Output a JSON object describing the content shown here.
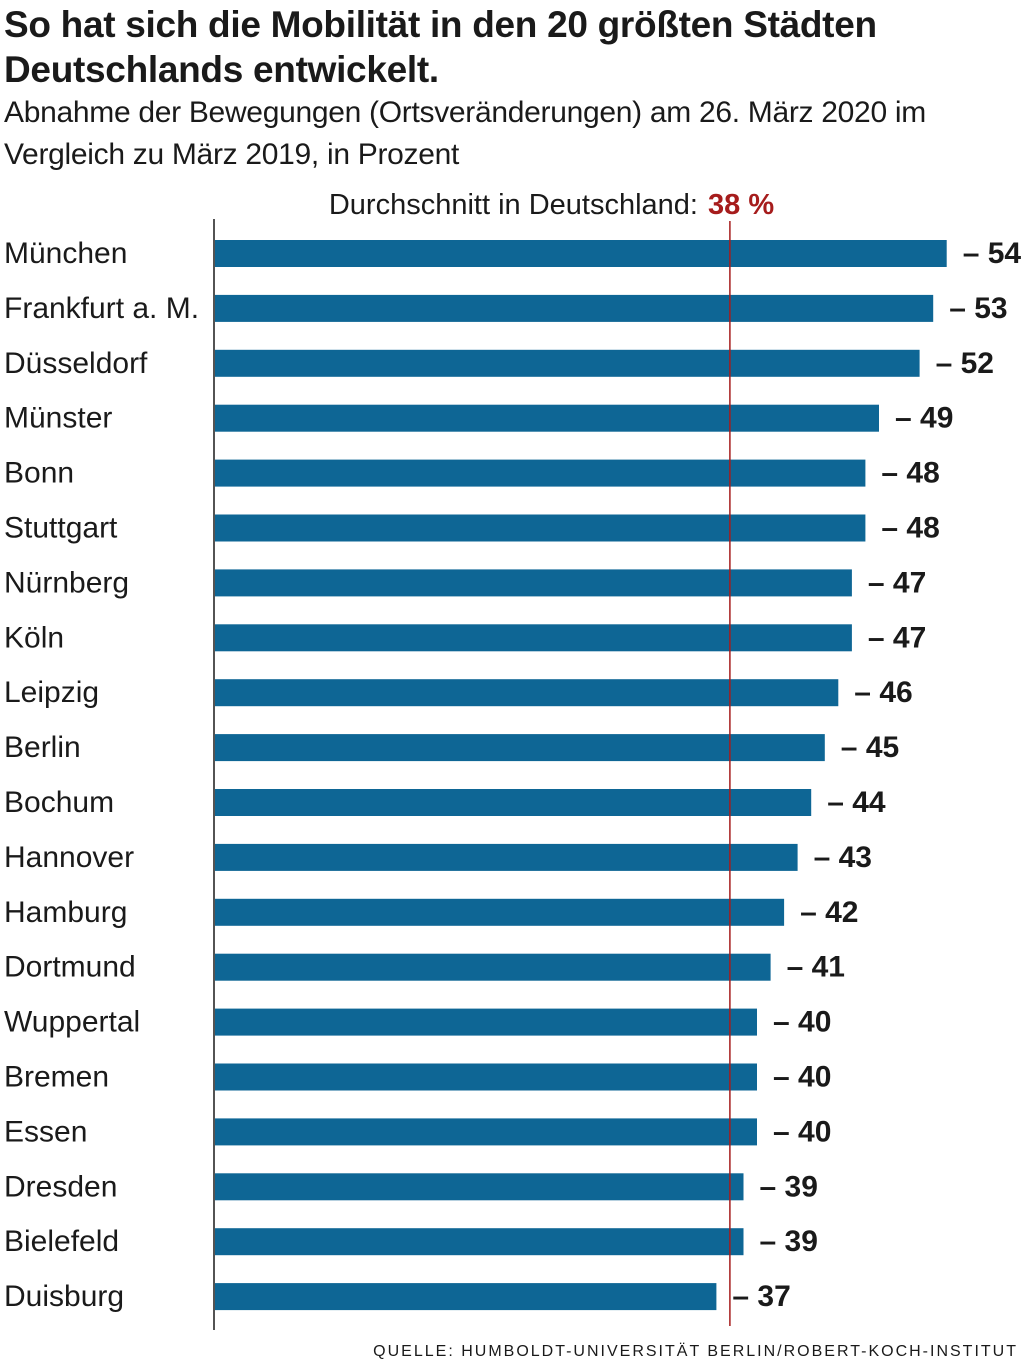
{
  "title": "So hat sich die Mobilität in den 20 größten Städten Deutschlands entwickelt.",
  "subtitle": "Abnahme der Bewegungen (Ortsveränderungen) am 26. März 2020 im Vergleich zu März 2019, in Prozent",
  "source": "QUELLE: HUMBOLDT-UNIVERSITÄT BERLIN/ROBERT-KOCH-INSTITUT",
  "colors": {
    "bar": "#0e6695",
    "average": "#a61c1c",
    "text": "#1a1a1a"
  },
  "chart_data": {
    "type": "bar",
    "orientation": "horizontal",
    "categories": [
      "München",
      "Frankfurt a. M.",
      "Düsseldorf",
      "Münster",
      "Bonn",
      "Stuttgart",
      "Nürnberg",
      "Köln",
      "Leipzig",
      "Berlin",
      "Bochum",
      "Hannover",
      "Hamburg",
      "Dortmund",
      "Wuppertal",
      "Bremen",
      "Essen",
      "Dresden",
      "Bielefeld",
      "Duisburg"
    ],
    "values": [
      -54,
      -53,
      -52,
      -49,
      -48,
      -48,
      -47,
      -47,
      -46,
      -45,
      -44,
      -43,
      -42,
      -41,
      -40,
      -40,
      -40,
      -39,
      -39,
      -37
    ],
    "value_labels": [
      "– 54",
      "– 53",
      "– 52",
      "– 49",
      "– 48",
      "– 48",
      "– 47",
      "– 47",
      "– 46",
      "– 45",
      "– 44",
      "– 43",
      "– 42",
      "– 41",
      "– 40",
      "– 40",
      "– 40",
      "– 39",
      "– 39",
      "– 37"
    ],
    "reference_line": {
      "label": "Durchschnitt in Deutschland: ",
      "value_label": "38 %",
      "value": -38
    },
    "xlim": [
      0,
      -54
    ],
    "grid": false
  }
}
